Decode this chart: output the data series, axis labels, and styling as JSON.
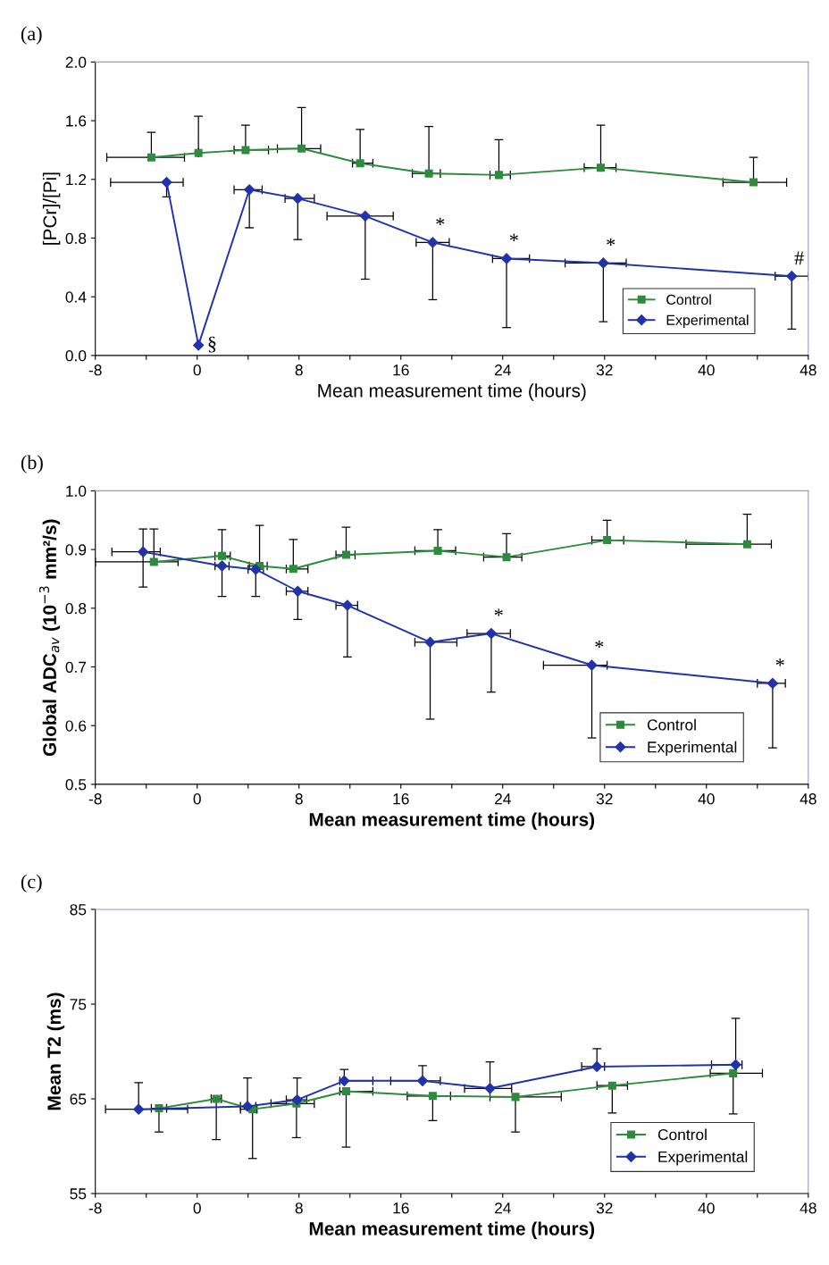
{
  "chart_data": [
    {
      "type": "line",
      "title": "(a)",
      "xlabel": "Mean measurement time (hours)",
      "ylabel": "[PCr]/[Pi]",
      "xlim": [
        -8,
        48
      ],
      "xticks": [
        -8,
        {
          "value": -4,
          "label": null
        },
        0,
        {
          "value": 4,
          "label": null
        },
        8,
        {
          "value": 12,
          "label": null
        },
        16,
        {
          "value": 20,
          "label": null
        },
        24,
        {
          "value": 28,
          "label": null
        },
        32,
        {
          "value": 36,
          "label": null
        },
        40,
        {
          "value": 44,
          "label": null
        },
        48
      ],
      "ylim": [
        0,
        2
      ],
      "yticks": [
        {
          "value": 0,
          "label": "0.0"
        },
        0.4,
        0.8,
        1.2,
        1.6,
        {
          "value": 2,
          "label": "2.0"
        }
      ],
      "grid": false,
      "legend": "bottom right",
      "line_style": "solid",
      "series": [
        {
          "name": "Control",
          "color": "#2e8b3e",
          "marker": "square",
          "x": [
            -3.6,
            0.1,
            3.8,
            8.2,
            12.8,
            18.2,
            23.7,
            31.7,
            43.7
          ],
          "values": [
            1.35,
            1.38,
            1.4,
            1.41,
            1.31,
            1.24,
            1.23,
            1.28,
            1.18
          ],
          "errors": [
            [
              1.35,
              1.52
            ],
            [
              1.38,
              1.63
            ],
            [
              1.4,
              1.57
            ],
            [
              1.41,
              1.69
            ],
            [
              1.31,
              1.54
            ],
            [
              1.24,
              1.56
            ],
            [
              1.23,
              1.47
            ],
            [
              1.28,
              1.57
            ],
            [
              1.18,
              1.35
            ]
          ],
          "xerrors": [
            [
              -7.1,
              -1.0
            ],
            null,
            [
              2.9,
              5.6
            ],
            [
              6.3,
              9.7
            ],
            [
              12.2,
              13.8
            ],
            [
              16.9,
              19.1
            ],
            [
              23.0,
              24.6
            ],
            [
              30.4,
              32.9
            ],
            [
              41.3,
              46.3
            ]
          ]
        },
        {
          "name": "Experimental",
          "color": "#2233aa",
          "marker": "diamond",
          "x": [
            -2.4,
            0.1,
            4.1,
            7.9,
            13.2,
            18.5,
            24.3,
            31.9,
            46.7
          ],
          "values": [
            1.18,
            0.07,
            1.13,
            1.07,
            0.95,
            0.77,
            0.66,
            0.63,
            0.54
          ],
          "errors": [
            [
              1.08,
              1.18
            ],
            null,
            [
              0.87,
              1.13
            ],
            [
              0.79,
              1.07
            ],
            [
              0.52,
              0.95
            ],
            [
              0.38,
              0.77
            ],
            [
              0.19,
              0.66
            ],
            [
              0.23,
              0.63
            ],
            [
              0.18,
              0.54
            ]
          ],
          "xerrors": [
            [
              -6.8,
              -1.1
            ],
            null,
            [
              2.9,
              5.1
            ],
            [
              6.9,
              9.2
            ],
            [
              10.2,
              15.4
            ],
            [
              17.2,
              19.8
            ],
            [
              23.2,
              26.1
            ],
            [
              28.9,
              33.7
            ],
            [
              45.4,
              48.0
            ]
          ]
        }
      ],
      "annotations": [
        {
          "text": "§",
          "x": 0.1,
          "y": 0.07
        },
        {
          "text": "*",
          "x": 18.5,
          "y": 0.77
        },
        {
          "text": "*",
          "x": 24.3,
          "y": 0.66
        },
        {
          "text": "*",
          "x": 31.9,
          "y": 0.63
        },
        {
          "text": "#",
          "x": 46.7,
          "y": 0.54
        }
      ]
    },
    {
      "type": "line",
      "title": "(b)",
      "xlabel": "Mean measurement time (hours)",
      "ylabel": "Global ADC$_{av}$ (10$^{−3}$ mm²/s)",
      "xlim": [
        -8,
        48
      ],
      "xticks": [
        -8,
        {
          "value": -4,
          "label": null
        },
        0,
        {
          "value": 4,
          "label": null
        },
        8,
        {
          "value": 12,
          "label": null
        },
        16,
        {
          "value": 20,
          "label": null
        },
        24,
        {
          "value": 28,
          "label": null
        },
        32,
        {
          "value": 36,
          "label": null
        },
        40,
        {
          "value": 44,
          "label": null
        },
        48
      ],
      "ylim": [
        0.5,
        1.0
      ],
      "yticks": [
        0.5,
        0.6,
        0.7,
        0.8,
        0.9,
        {
          "value": 1.0,
          "label": "1.0"
        }
      ],
      "grid": false,
      "legend": "bottom right",
      "line_style": "solid",
      "series": [
        {
          "name": "Control",
          "color": "#2e8b3e",
          "marker": "square",
          "x": [
            -3.4,
            1.95,
            4.9,
            7.55,
            11.7,
            18.9,
            24.3,
            32.2,
            43.2
          ],
          "values": [
            0.879,
            0.889,
            0.872,
            0.867,
            0.891,
            0.898,
            0.887,
            0.916,
            0.909
          ],
          "errors": [
            [
              0.879,
              0.935
            ],
            [
              0.889,
              0.934
            ],
            [
              0.872,
              0.941
            ],
            [
              0.867,
              0.917
            ],
            [
              0.891,
              0.938
            ],
            [
              0.898,
              0.934
            ],
            [
              0.887,
              0.927
            ],
            [
              0.916,
              0.95
            ],
            [
              0.909,
              0.96
            ]
          ],
          "xerrors": [
            [
              -8.0,
              -1.5
            ],
            [
              1.4,
              2.6
            ],
            [
              4.1,
              5.5
            ],
            [
              7.0,
              8.7
            ],
            [
              10.9,
              12.4
            ],
            [
              17.1,
              20.3
            ],
            [
              22.5,
              25.5
            ],
            [
              31.0,
              33.5
            ],
            [
              38.4,
              45.1
            ]
          ]
        },
        {
          "name": "Experimental",
          "color": "#2233aa",
          "marker": "diamond",
          "x": [
            -4.25,
            1.95,
            4.6,
            7.9,
            11.8,
            18.3,
            23.1,
            31.0,
            45.2
          ],
          "values": [
            0.896,
            0.872,
            0.866,
            0.829,
            0.805,
            0.742,
            0.757,
            0.703,
            0.672
          ],
          "errors": [
            [
              0.836,
              0.935
            ],
            [
              0.82,
              0.872
            ],
            [
              0.82,
              0.866
            ],
            [
              0.781,
              0.829
            ],
            [
              0.717,
              0.805
            ],
            [
              0.611,
              0.742
            ],
            [
              0.657,
              0.757
            ],
            [
              0.579,
              0.703
            ],
            [
              0.562,
              0.672
            ]
          ],
          "xerrors": [
            [
              -6.7,
              -2.9
            ],
            [
              1.4,
              2.5
            ],
            [
              4.0,
              5.2
            ],
            [
              7.0,
              8.7
            ],
            [
              10.9,
              12.6
            ],
            [
              17.1,
              20.4
            ],
            [
              21.2,
              24.6
            ],
            [
              27.2,
              32.2
            ],
            [
              44.0,
              46.2
            ]
          ]
        }
      ],
      "annotations": [
        {
          "text": "*",
          "x": 23.1,
          "y": 0.757
        },
        {
          "text": "*",
          "x": 31.0,
          "y": 0.703
        },
        {
          "text": "*",
          "x": 45.2,
          "y": 0.672
        }
      ]
    },
    {
      "type": "line",
      "title": "(c)",
      "xlabel": "Mean measurement time (hours)",
      "ylabel": "Mean T2 (ms)",
      "xlim": [
        -8,
        48
      ],
      "xticks": [
        -8,
        {
          "value": -4,
          "label": null
        },
        0,
        {
          "value": 4,
          "label": null
        },
        8,
        {
          "value": 12,
          "label": null
        },
        16,
        {
          "value": 20,
          "label": null
        },
        24,
        {
          "value": 28,
          "label": null
        },
        32,
        {
          "value": 36,
          "label": null
        },
        40,
        {
          "value": 44,
          "label": null
        },
        48
      ],
      "ylim": [
        55,
        85
      ],
      "yticks": [
        55,
        65,
        75,
        85
      ],
      "grid": false,
      "legend": "bottom right",
      "line_style": "solid",
      "series": [
        {
          "name": "Control",
          "color": "#2e8b3e",
          "marker": "square",
          "x": [
            -3.0,
            1.5,
            4.35,
            7.8,
            11.7,
            18.5,
            25.0,
            32.6,
            42.1
          ],
          "values": [
            64.0,
            65.0,
            63.9,
            64.5,
            65.8,
            65.3,
            65.2,
            66.4,
            67.7
          ],
          "errors": [
            [
              61.5,
              64.0
            ],
            [
              60.7,
              65.0
            ],
            [
              58.7,
              63.9
            ],
            [
              60.9,
              64.5
            ],
            [
              59.9,
              65.8
            ],
            [
              62.7,
              65.3
            ],
            [
              61.5,
              65.2
            ],
            [
              63.5,
              66.4
            ],
            [
              63.4,
              67.7
            ]
          ],
          "xerrors": [
            [
              -3.6,
              -2.4
            ],
            [
              1.1,
              1.9
            ],
            [
              3.4,
              4.7
            ],
            [
              5.8,
              9.2
            ],
            [
              11.2,
              13.8
            ],
            [
              16.5,
              19.9
            ],
            [
              23.0,
              28.6
            ],
            [
              31.4,
              33.8
            ],
            [
              40.3,
              44.4
            ]
          ]
        },
        {
          "name": "Experimental",
          "color": "#2233aa",
          "marker": "diamond",
          "x": [
            -4.6,
            3.95,
            7.85,
            11.55,
            17.7,
            23.0,
            31.4,
            42.3
          ],
          "values": [
            63.9,
            64.2,
            64.9,
            66.9,
            66.9,
            66.1,
            68.4,
            68.6
          ],
          "errors": [
            [
              63.9,
              66.7
            ],
            [
              64.2,
              67.2
            ],
            [
              64.9,
              67.2
            ],
            [
              66.9,
              68.1
            ],
            [
              66.9,
              68.5
            ],
            [
              66.1,
              68.9
            ],
            [
              68.4,
              70.3
            ],
            [
              68.6,
              73.5
            ]
          ],
          "xerrors": [
            [
              -7.2,
              -0.75
            ],
            [
              3.4,
              4.6
            ],
            [
              7.0,
              8.6
            ],
            [
              11.2,
              13.8
            ],
            [
              15.2,
              19.1
            ],
            [
              21.0,
              24.7
            ],
            [
              30.2,
              32.0
            ],
            [
              40.4,
              42.8
            ]
          ]
        }
      ]
    }
  ]
}
